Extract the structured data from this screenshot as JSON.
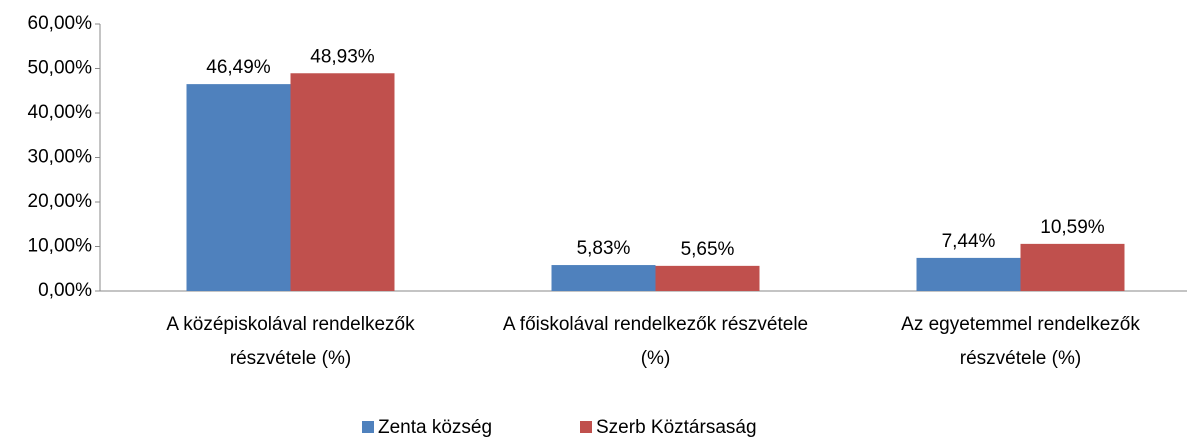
{
  "chart_data": {
    "type": "bar",
    "categories": [
      "A középiskolával rendelkezők részvétele (%)",
      "A főiskolával rendelkezők részvétele (%)",
      "Az egyetemmel rendelkezők részvétele (%)"
    ],
    "series": [
      {
        "name": "Zenta község",
        "color": "#4f81bd",
        "values": [
          46.49,
          5.83,
          7.44
        ],
        "value_labels": [
          "46,49%",
          "5,83%",
          "7,44%"
        ]
      },
      {
        "name": "Szerb Köztársaság",
        "color": "#c0504d",
        "values": [
          48.93,
          5.65,
          10.59
        ],
        "value_labels": [
          "48,93%",
          "5,65%",
          "10,59%"
        ]
      }
    ],
    "ylim": [
      0,
      60
    ],
    "yticks": [
      {
        "value": 0,
        "label": "0,00%"
      },
      {
        "value": 10,
        "label": "10,00%"
      },
      {
        "value": 20,
        "label": "20,00%"
      },
      {
        "value": 30,
        "label": "30,00%"
      },
      {
        "value": 40,
        "label": "40,00%"
      },
      {
        "value": 50,
        "label": "50,00%"
      },
      {
        "value": 60,
        "label": "60,00%"
      }
    ],
    "grid": false,
    "legend": "bottom"
  }
}
